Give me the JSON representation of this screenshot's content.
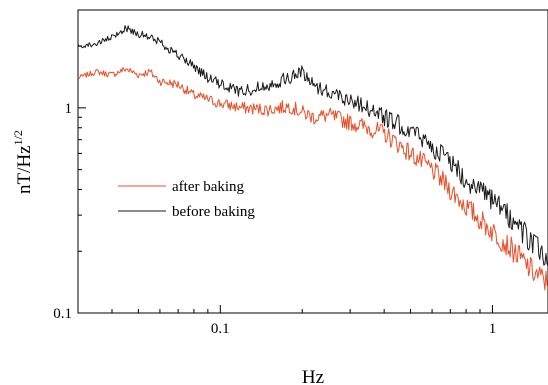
{
  "chart_data": {
    "type": "line",
    "xscale": "log",
    "yscale": "log",
    "xlim": [
      0.03,
      1.6
    ],
    "ylim": [
      0.1,
      3.0
    ],
    "xlabel": "Hz",
    "ylabel_base": "nT/Hz",
    "ylabel_exp": "1/2",
    "xticks": [
      {
        "value": 0.1,
        "label": "0.1"
      },
      {
        "value": 1,
        "label": "1"
      }
    ],
    "yticks": [
      {
        "value": 0.1,
        "label": "0.1"
      },
      {
        "value": 1,
        "label": "1"
      }
    ],
    "grid": false,
    "legend_position": "middle-left",
    "series": [
      {
        "name": "after baking",
        "color": "#e8502a",
        "x": [
          0.03,
          0.035,
          0.04,
          0.045,
          0.05,
          0.055,
          0.06,
          0.07,
          0.08,
          0.09,
          0.1,
          0.12,
          0.15,
          0.18,
          0.2,
          0.22,
          0.25,
          0.3,
          0.35,
          0.4,
          0.5,
          0.6,
          0.7,
          0.8,
          1.0,
          1.2,
          1.4,
          1.6
        ],
        "y": [
          1.4,
          1.5,
          1.45,
          1.55,
          1.45,
          1.5,
          1.35,
          1.3,
          1.15,
          1.1,
          1.05,
          1.0,
          0.98,
          1.02,
          0.95,
          0.9,
          0.92,
          0.85,
          0.8,
          0.75,
          0.6,
          0.5,
          0.4,
          0.33,
          0.25,
          0.2,
          0.16,
          0.14
        ]
      },
      {
        "name": "before baking",
        "color": "#1a1a1a",
        "x": [
          0.03,
          0.035,
          0.04,
          0.045,
          0.05,
          0.055,
          0.06,
          0.07,
          0.08,
          0.09,
          0.1,
          0.12,
          0.15,
          0.18,
          0.2,
          0.22,
          0.25,
          0.3,
          0.35,
          0.4,
          0.5,
          0.6,
          0.7,
          0.8,
          1.0,
          1.2,
          1.4,
          1.6
        ],
        "y": [
          2.0,
          2.05,
          2.2,
          2.45,
          2.3,
          2.2,
          2.1,
          1.8,
          1.6,
          1.4,
          1.3,
          1.2,
          1.3,
          1.4,
          1.5,
          1.3,
          1.2,
          1.1,
          1.0,
          0.9,
          0.78,
          0.65,
          0.55,
          0.45,
          0.35,
          0.28,
          0.22,
          0.18
        ]
      }
    ]
  }
}
